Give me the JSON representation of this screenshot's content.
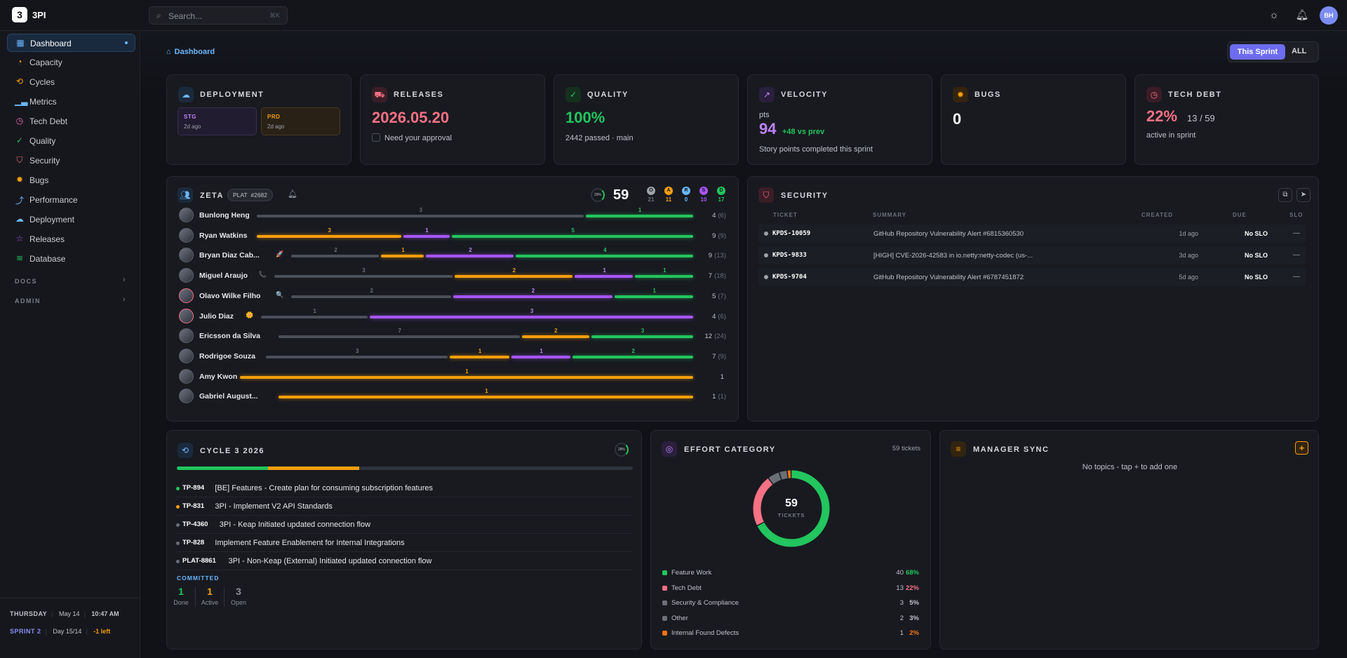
{
  "app": {
    "logo": "3",
    "name": "3PI"
  },
  "search": {
    "placeholder": "Search...",
    "shortcut": "⌘K"
  },
  "user": {
    "initials": "BH"
  },
  "nav": [
    {
      "label": "Dashboard",
      "icon": "grid-icon",
      "color": "#6ab7ff"
    },
    {
      "label": "Capacity",
      "icon": "gauge-icon",
      "color": "#f59e0b"
    },
    {
      "label": "Cycles",
      "icon": "cycle-icon",
      "color": "#f59e0b"
    },
    {
      "label": "Metrics",
      "icon": "bar-chart-icon",
      "color": "#6ab7ff"
    },
    {
      "label": "Tech Debt",
      "icon": "clock-icon",
      "color": "#f472b6"
    },
    {
      "label": "Quality",
      "icon": "check-icon",
      "color": "#22c55e"
    },
    {
      "label": "Security",
      "icon": "shield-icon",
      "color": "#f87171"
    },
    {
      "label": "Bugs",
      "icon": "bug-icon",
      "color": "#f59e0b"
    },
    {
      "label": "Performance",
      "icon": "trend-icon",
      "color": "#6ab7ff"
    },
    {
      "label": "Deployment",
      "icon": "cloud-icon",
      "color": "#6ab7ff"
    },
    {
      "label": "Releases",
      "icon": "star-icon",
      "color": "#a855f7"
    },
    {
      "label": "Database",
      "icon": "database-icon",
      "color": "#22c55e"
    }
  ],
  "nav_sections": {
    "docs": "DOCS",
    "admin": "ADMIN"
  },
  "footer": {
    "day": "THURSDAY",
    "date": "May 14",
    "time": "10:47 AM",
    "sprint": "SPRINT 2",
    "sprint_day": "Day 15/14",
    "left": "-1 left"
  },
  "breadcrumb": "Dashboard",
  "period": {
    "active": "This Sprint",
    "other": "ALL"
  },
  "kpi": {
    "deployment": {
      "title": "DEPLOYMENT",
      "stg": {
        "name": "STG",
        "ago": "2d ago"
      },
      "prd": {
        "name": "PRD",
        "ago": "2d ago"
      }
    },
    "releases": {
      "title": "RELEASES",
      "value": "2026.05.20",
      "sub": "Need your approval"
    },
    "quality": {
      "title": "QUALITY",
      "value": "100%",
      "sub": "2442 passed · main"
    },
    "velocity": {
      "title": "VELOCITY",
      "unit": "pts",
      "value": "94",
      "delta": "+48 vs prev",
      "sub": "Story points completed this sprint"
    },
    "bugs": {
      "title": "BUGS",
      "value": "0"
    },
    "techdebt": {
      "title": "TECH DEBT",
      "value": "22%",
      "ratio": "13 / 59",
      "sub": "active in sprint"
    }
  },
  "team": {
    "name": "ZETA",
    "tag": "PLAT",
    "ticket": "#2682",
    "progress": "29%",
    "total": "59",
    "pills": [
      {
        "letter": "O",
        "count": "21",
        "color": "#9ca0a8"
      },
      {
        "letter": "A",
        "count": "11",
        "color": "#f59e0b"
      },
      {
        "letter": "R",
        "count": "0",
        "color": "#6ab7ff"
      },
      {
        "letter": "S",
        "count": "10",
        "color": "#a855f7"
      },
      {
        "letter": "D",
        "count": "17",
        "color": "#22c55e"
      }
    ],
    "members": [
      {
        "name": "Bunlong Heng",
        "done": "4",
        "total": "(6)",
        "segs": [
          {
            "c": "gray",
            "v": "3"
          },
          {
            "c": "green",
            "v": "1"
          }
        ]
      },
      {
        "name": "Ryan Watkins",
        "done": "9",
        "total": "(9)",
        "segs": [
          {
            "c": "orange",
            "v": "3"
          },
          {
            "c": "purple",
            "v": "1"
          },
          {
            "c": "green",
            "v": "5"
          }
        ]
      },
      {
        "name": "Bryan Diaz Cab...",
        "emoji": "🚀",
        "done": "9",
        "total": "(13)",
        "segs": [
          {
            "c": "gray",
            "v": "2"
          },
          {
            "c": "orange",
            "v": "1"
          },
          {
            "c": "purple",
            "v": "2"
          },
          {
            "c": "green",
            "v": "4"
          }
        ]
      },
      {
        "name": "Miguel Araujo",
        "emoji": "📞",
        "done": "7",
        "total": "(18)",
        "segs": [
          {
            "c": "gray",
            "v": "3"
          },
          {
            "c": "orange",
            "v": "2"
          },
          {
            "c": "purple",
            "v": "1"
          },
          {
            "c": "green",
            "v": "1"
          }
        ]
      },
      {
        "name": "Olavo Wilke Filho",
        "emoji": "🔍",
        "done": "5",
        "total": "(7)",
        "segs": [
          {
            "c": "gray",
            "v": "2"
          },
          {
            "c": "purple",
            "v": "2"
          },
          {
            "c": "green",
            "v": "1"
          }
        ]
      },
      {
        "name": "Julio Diaz",
        "emoji": "🌼",
        "done": "4",
        "total": "(6)",
        "segs": [
          {
            "c": "gray",
            "v": "1"
          },
          {
            "c": "purple",
            "v": "3"
          }
        ]
      },
      {
        "name": "Ericsson da Silva",
        "done": "12",
        "total": "(24)",
        "segs": [
          {
            "c": "gray",
            "v": "7"
          },
          {
            "c": "orange",
            "v": "2"
          },
          {
            "c": "green",
            "v": "3"
          }
        ]
      },
      {
        "name": "Rodrigoe Souza",
        "done": "7",
        "total": "(9)",
        "segs": [
          {
            "c": "gray",
            "v": "3"
          },
          {
            "c": "orange",
            "v": "1"
          },
          {
            "c": "purple",
            "v": "1"
          },
          {
            "c": "green",
            "v": "2"
          }
        ]
      },
      {
        "name": "Amy Kwon",
        "done": "1",
        "total": "",
        "segs": [
          {
            "c": "orange",
            "v": "1"
          }
        ]
      },
      {
        "name": "Gabriel August...",
        "done": "1",
        "total": "(1)",
        "segs": [
          {
            "c": "orange",
            "v": "1"
          }
        ]
      }
    ]
  },
  "security": {
    "title": "SECURITY",
    "headers": {
      "ticket": "TICKET",
      "summary": "SUMMARY",
      "created": "CREATED",
      "due": "DUE",
      "slo": "SLO"
    },
    "rows": [
      {
        "id": "KPDS-10059",
        "summary": "GitHub Repository Vulnerability Alert #6815360530",
        "created": "1d ago",
        "due": "No SLO",
        "slo": "—"
      },
      {
        "id": "KPDS-9833",
        "summary": "[HIGH] CVE-2026-42583 in io.netty:netty-codec (us-...",
        "created": "3d ago",
        "due": "No SLO",
        "slo": "—"
      },
      {
        "id": "KPDS-9704",
        "summary": "GitHub Repository Vulnerability Alert #6787451872",
        "created": "5d ago",
        "due": "No SLO",
        "slo": "—"
      }
    ]
  },
  "cycle": {
    "title": "CYCLE 3 2026",
    "progress": "28%",
    "progress_done": 0.2,
    "progress_active": 0.4,
    "tickets": [
      {
        "id": "TP-894",
        "title": "[BE] Features - Create plan for consuming subscription features",
        "color": "#22c55e"
      },
      {
        "id": "TP-831",
        "title": "3PI - Implement V2 API Standards",
        "color": "#f59e0b"
      },
      {
        "id": "TP-4360",
        "title": "3PI - Keap Initiated updated connection flow",
        "color": "#6b6f78"
      },
      {
        "id": "TP-828",
        "title": "Implement Feature Enablement for Internal Integrations",
        "color": "#6b6f78"
      },
      {
        "id": "PLAT-8861",
        "title": "3PI - Non-Keap (External) Initiated updated connection flow",
        "color": "#6b6f78"
      }
    ],
    "committed_label": "COMMITTED",
    "committed": [
      {
        "value": "1",
        "label": "Done",
        "color": "#22c55e"
      },
      {
        "value": "1",
        "label": "Active",
        "color": "#f59e0b"
      },
      {
        "value": "3",
        "label": "Open",
        "color": "#8b8f98"
      }
    ]
  },
  "effort": {
    "title": "EFFORT CATEGORY",
    "count": "59 tickets",
    "center_value": "59",
    "center_label": "TICKETS",
    "items": [
      {
        "name": "Feature Work",
        "count": "40",
        "pct": "68%",
        "color": "#22c55e",
        "value": 40
      },
      {
        "name": "Tech Debt",
        "count": "13",
        "pct": "22%",
        "color": "#f87185",
        "value": 13
      },
      {
        "name": "Security & Compliance",
        "count": "3",
        "pct": "5%",
        "color": "#6b6f78",
        "value": 3
      },
      {
        "name": "Other",
        "count": "2",
        "pct": "3%",
        "color": "#6b6f78",
        "value": 2
      },
      {
        "name": "Internal Found Defects",
        "count": "1",
        "pct": "2%",
        "color": "#f97316",
        "value": 1
      }
    ]
  },
  "manager": {
    "title": "MANAGER SYNC",
    "empty": "No topics - tap + to add one",
    "add": "+"
  }
}
